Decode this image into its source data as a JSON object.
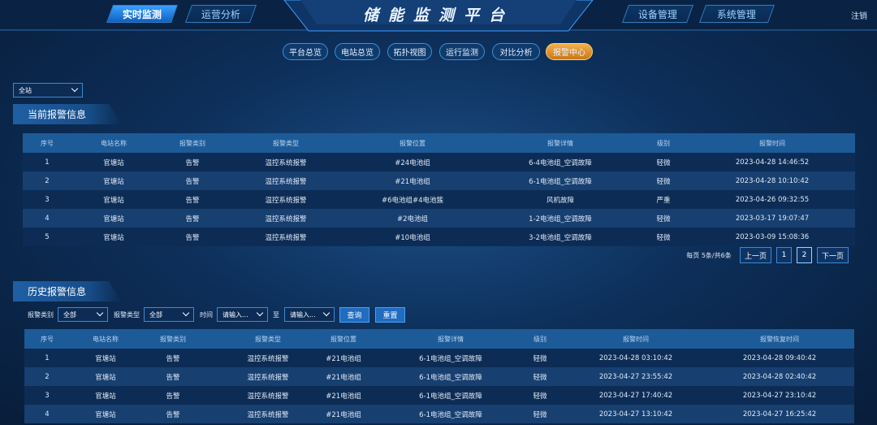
{
  "header": {
    "title": "储能监测平台",
    "left_tabs": [
      "实时监测",
      "运营分析"
    ],
    "right_tabs": [
      "设备管理",
      "系统管理"
    ],
    "logout": "注销"
  },
  "subnav": [
    "平台总览",
    "电站总览",
    "拓扑视图",
    "运行监测",
    "对比分析",
    "报警中心"
  ],
  "station_select": "全站",
  "current": {
    "title": "当前报警信息",
    "columns": [
      "序号",
      "电站名称",
      "报警类别",
      "报警类型",
      "报警位置",
      "报警详情",
      "级别",
      "报警时间"
    ],
    "rows": [
      [
        1,
        "官塘站",
        "告警",
        "温控系统报警",
        "#24电池组",
        "6-4电池组_空调故障",
        "轻微",
        "2023-04-28 14:46:52"
      ],
      [
        2,
        "官塘站",
        "告警",
        "温控系统报警",
        "#21电池组",
        "6-1电池组_空调故障",
        "轻微",
        "2023-04-28 10:10:42"
      ],
      [
        3,
        "官塘站",
        "告警",
        "温控系统报警",
        "#6电池组#4电池簇",
        "风机故障",
        "严重",
        "2023-04-26 09:32:55"
      ],
      [
        4,
        "官塘站",
        "告警",
        "温控系统报警",
        "#2电池组",
        "1-2电池组_空调故障",
        "轻微",
        "2023-03-17 19:07:47"
      ],
      [
        5,
        "官塘站",
        "告警",
        "温控系统报警",
        "#10电池组",
        "3-2电池组_空调故障",
        "轻微",
        "2023-03-09 15:08:36"
      ]
    ],
    "pagination": {
      "info": "每页 5条/共6条",
      "prev": "上一页",
      "pages": [
        "1",
        "2"
      ],
      "next": "下一页"
    }
  },
  "history": {
    "title": "历史报警信息",
    "filters": {
      "category_label": "报警类别",
      "category": "全部",
      "type_label": "报警类型",
      "type": "全部",
      "time_label": "时间",
      "start": "请输入...",
      "to": "至",
      "end": "请输入...",
      "search": "查询",
      "reset": "重置"
    },
    "columns": [
      "序号",
      "电站名称",
      "报警类别",
      "报警类型",
      "报警位置",
      "报警详情",
      "级别",
      "报警时间",
      "报警恢复时间"
    ],
    "rows": [
      [
        1,
        "官塘站",
        "告警",
        "温控系统报警",
        "#21电池组",
        "6-1电池组_空调故障",
        "轻微",
        "2023-04-28 03:10:42",
        "2023-04-28 09:40:42"
      ],
      [
        2,
        "官塘站",
        "告警",
        "温控系统报警",
        "#21电池组",
        "6-1电池组_空调故障",
        "轻微",
        "2023-04-27 23:55:42",
        "2023-04-28 02:40:42"
      ],
      [
        3,
        "官塘站",
        "告警",
        "温控系统报警",
        "#21电池组",
        "6-1电池组_空调故障",
        "轻微",
        "2023-04-27 17:40:42",
        "2023-04-27 23:10:42"
      ],
      [
        4,
        "官塘站",
        "告警",
        "温控系统报警",
        "#21电池组",
        "6-1电池组_空调故障",
        "轻微",
        "2023-04-27 13:10:42",
        "2023-04-27 16:25:42"
      ]
    ]
  }
}
